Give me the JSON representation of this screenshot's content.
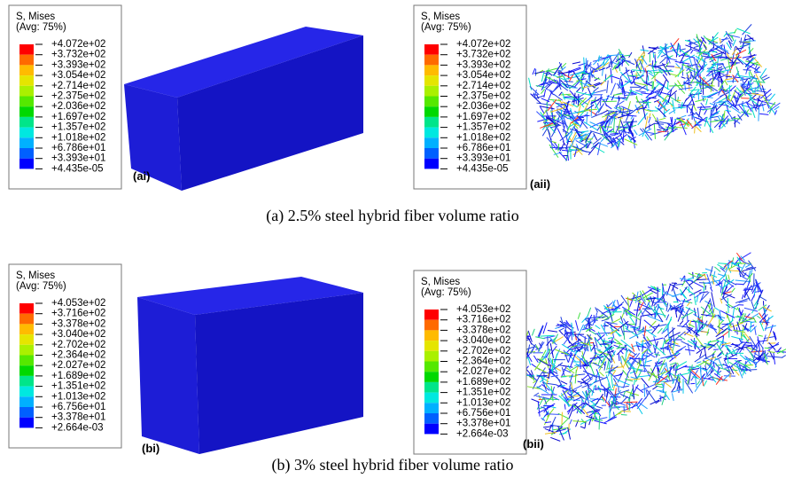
{
  "panels": [
    {
      "label": "(ai)",
      "legend": {
        "title": "S, Mises",
        "subtitle": "(Avg: 75%)",
        "values": [
          "+4.072e+02",
          "+3.732e+02",
          "+3.393e+02",
          "+3.054e+02",
          "+2.714e+02",
          "+2.375e+02",
          "+2.036e+02",
          "+1.697e+02",
          "+1.357e+02",
          "+1.018e+02",
          "+6.786e+01",
          "+3.393e+01",
          "+4.435e-05"
        ]
      }
    },
    {
      "label": "(aii)",
      "legend": {
        "title": "S, Mises",
        "subtitle": "(Avg: 75%)",
        "values": [
          "+4.072e+02",
          "+3.732e+02",
          "+3.393e+02",
          "+3.054e+02",
          "+2.714e+02",
          "+2.375e+02",
          "+2.036e+02",
          "+1.697e+02",
          "+1.357e+02",
          "+1.018e+02",
          "+6.786e+01",
          "+3.393e+01",
          "+4.435e-05"
        ]
      }
    },
    {
      "label": "(bi)",
      "legend": {
        "title": "S, Mises",
        "subtitle": "(Avg: 75%)",
        "values": [
          "+4.053e+02",
          "+3.716e+02",
          "+3.378e+02",
          "+3.040e+02",
          "+2.702e+02",
          "+2.364e+02",
          "+2.027e+02",
          "+1.689e+02",
          "+1.351e+02",
          "+1.013e+02",
          "+6.756e+01",
          "+3.378e+01",
          "+2.664e-03"
        ]
      }
    },
    {
      "label": "(bii)",
      "legend": {
        "title": "S, Mises",
        "subtitle": "(Avg: 75%)",
        "values": [
          "+4.053e+02",
          "+3.716e+02",
          "+3.378e+02",
          "+3.040e+02",
          "+2.702e+02",
          "+2.364e+02",
          "+2.027e+02",
          "+1.689e+02",
          "+1.351e+02",
          "+1.013e+02",
          "+6.756e+01",
          "+3.378e+01",
          "+2.664e-03"
        ]
      }
    }
  ],
  "captions": [
    "(a) 2.5% steel hybrid fiber volume ratio",
    "(b) 3% steel hybrid fiber volume ratio"
  ]
}
